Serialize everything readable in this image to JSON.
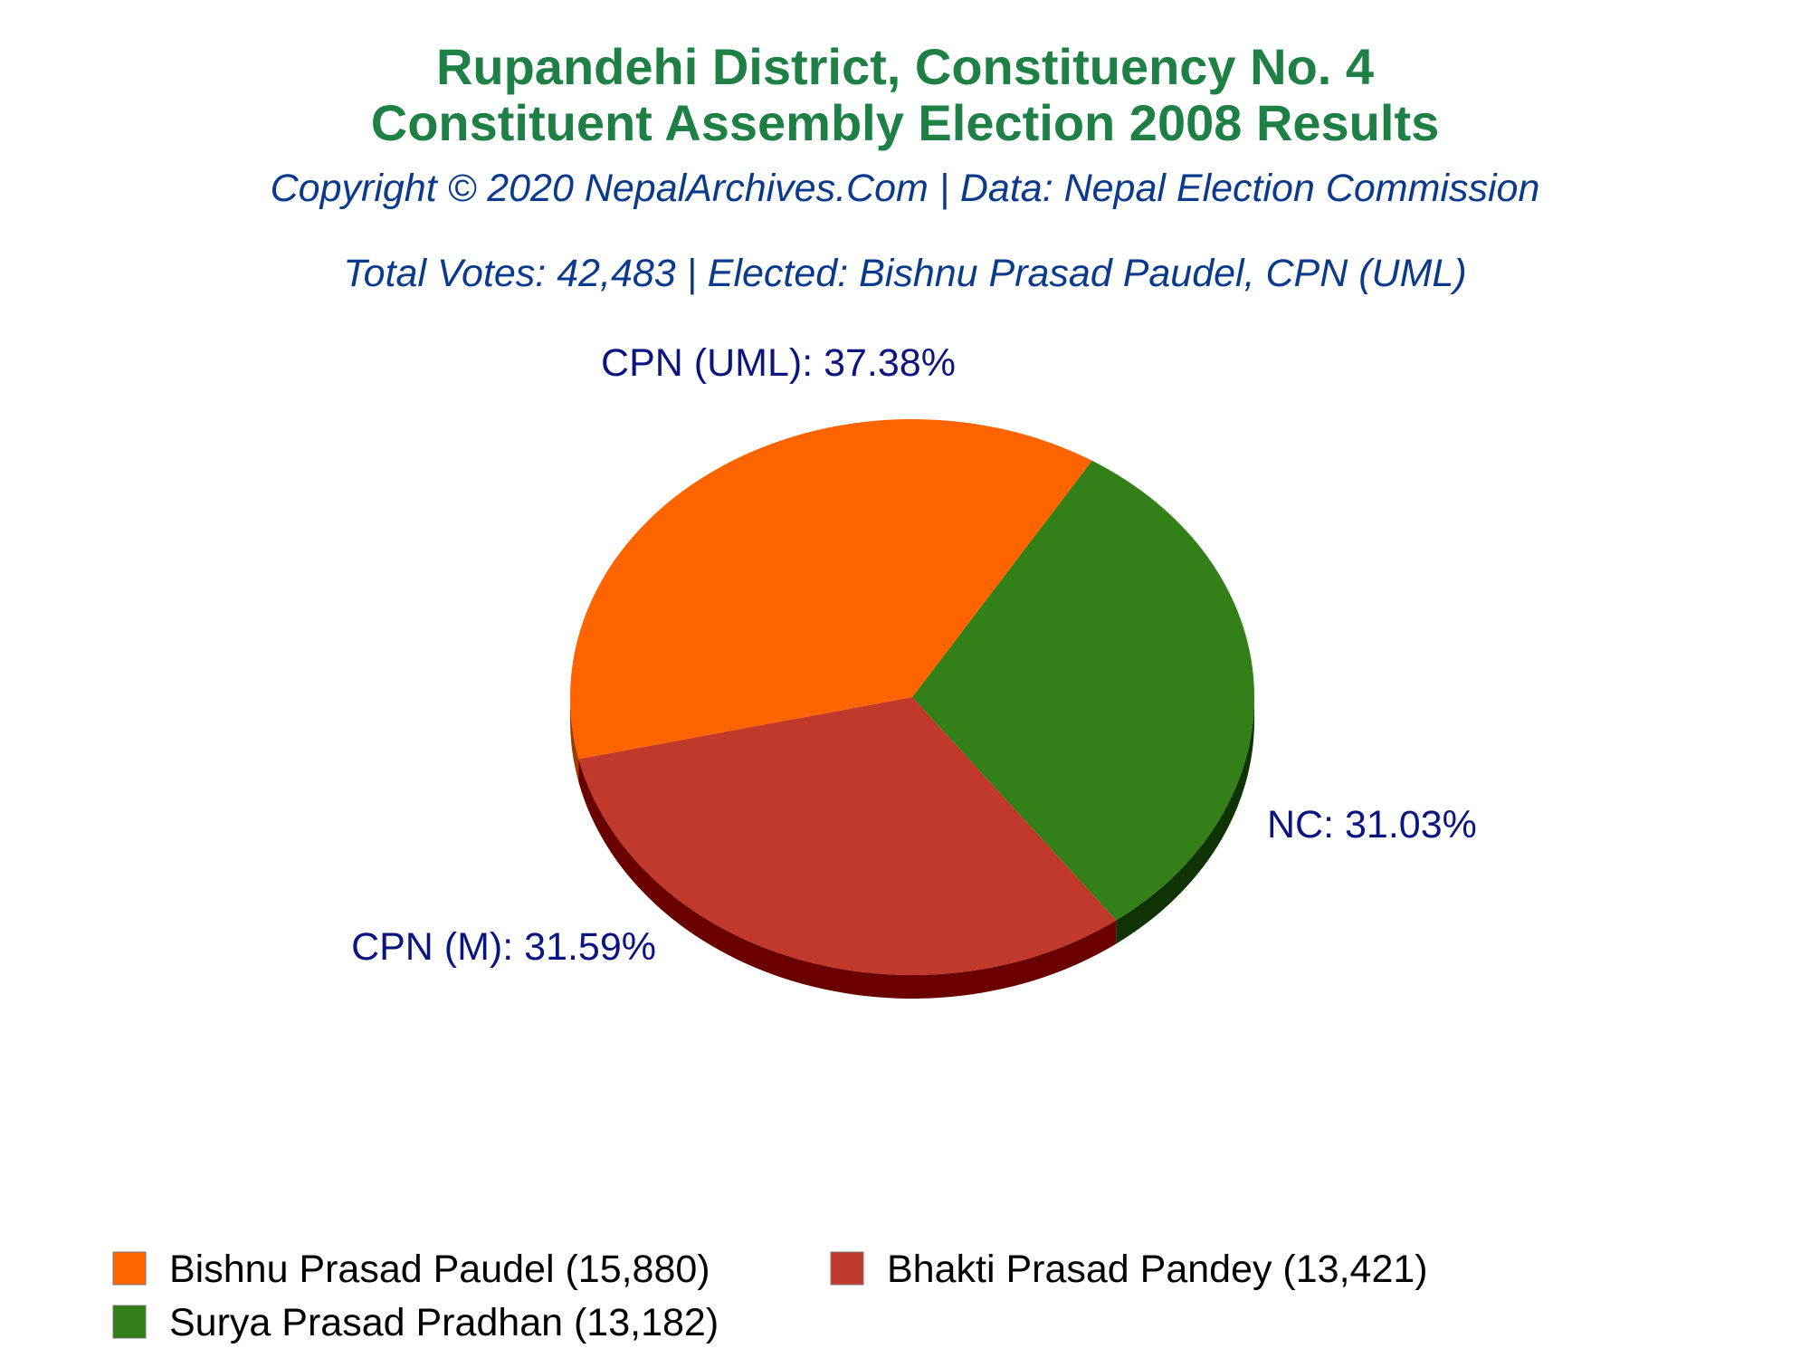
{
  "chart_data": {
    "type": "pie",
    "title": [
      "Rupandehi District, Constituency No. 4",
      "Constituent Assembly Election 2008 Results"
    ],
    "subtitle": "Copyright © 2020 NepalArchives.Com | Data: Nepal Election Commission",
    "info": "Total Votes: 42,483 | Elected: Bishnu Prasad Paudel, CPN (UML)",
    "slices": [
      {
        "label": "CPN (UML): 37.38%",
        "party": "CPN (UML)",
        "percent": 37.38,
        "candidate": "Bishnu Prasad Paudel (15,880)",
        "votes": 15880,
        "color": "#ff6400",
        "side_color": "#a03c00"
      },
      {
        "label": "NC: 31.03%",
        "party": "NC",
        "percent": 31.03,
        "candidate": "Surya Prasad Pradhan (13,182)",
        "votes": 13182,
        "color": "#338018",
        "side_color": "#0f3305"
      },
      {
        "label": "CPN (M): 31.59%",
        "party": "CPN (M)",
        "percent": 31.59,
        "candidate": "Bhakti Prasad Pandey (13,421)",
        "votes": 13421,
        "color": "#c0392b",
        "side_color": "#6b0000"
      }
    ],
    "legend": [
      {
        "text": "Bishnu Prasad Paudel (15,880)",
        "color": "#ff6400"
      },
      {
        "text": "Bhakti Prasad Pandey (13,421)",
        "color": "#c0392b"
      },
      {
        "text": "Surya Prasad Pradhan (13,182)",
        "color": "#338018"
      }
    ],
    "legend_placement": "bottom",
    "style": "3d-pie",
    "colors": {
      "title": "#1e8045",
      "subtitle": "#0b3a8c",
      "labels": "#0b1580"
    }
  }
}
